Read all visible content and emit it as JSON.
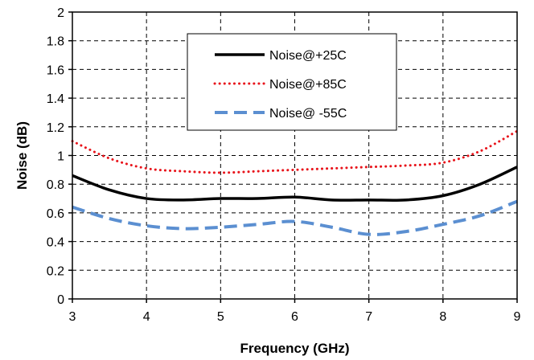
{
  "chart_data": {
    "type": "line",
    "xlabel": "Frequency (GHz)",
    "ylabel": "Noise (dB)",
    "xlim": [
      3,
      9
    ],
    "ylim": [
      0,
      2
    ],
    "xticks": [
      "3",
      "4",
      "5",
      "6",
      "7",
      "8",
      "9"
    ],
    "yticks": [
      "0",
      "0.2",
      "0.4",
      "0.6",
      "0.8",
      "1",
      "1.2",
      "1.4",
      "1.6",
      "1.8",
      "2"
    ],
    "grid": true,
    "legend_position": "top-right",
    "series": [
      {
        "name": "Noise@+25C",
        "color": "#000000",
        "style": "solid",
        "x": [
          3,
          3.5,
          4,
          4.5,
          5,
          5.5,
          6,
          6.5,
          7,
          7.5,
          8,
          8.5,
          9
        ],
        "y": [
          0.86,
          0.76,
          0.7,
          0.69,
          0.7,
          0.7,
          0.71,
          0.69,
          0.69,
          0.69,
          0.72,
          0.8,
          0.92
        ]
      },
      {
        "name": "Noise@+85C",
        "color": "#e8141b",
        "style": "dotted",
        "x": [
          3,
          3.5,
          4,
          4.5,
          5,
          5.5,
          6,
          6.5,
          7,
          7.5,
          8,
          8.5,
          9
        ],
        "y": [
          1.1,
          0.98,
          0.91,
          0.89,
          0.88,
          0.89,
          0.9,
          0.91,
          0.92,
          0.93,
          0.95,
          1.03,
          1.17
        ]
      },
      {
        "name": "Noise@ -55C",
        "color": "#5b8fd1",
        "style": "dashed",
        "x": [
          3,
          3.5,
          4,
          4.5,
          5,
          5.5,
          6,
          6.5,
          7,
          7.5,
          8,
          8.5,
          9
        ],
        "y": [
          0.64,
          0.56,
          0.51,
          0.49,
          0.5,
          0.52,
          0.54,
          0.5,
          0.45,
          0.47,
          0.52,
          0.58,
          0.68
        ]
      }
    ]
  }
}
